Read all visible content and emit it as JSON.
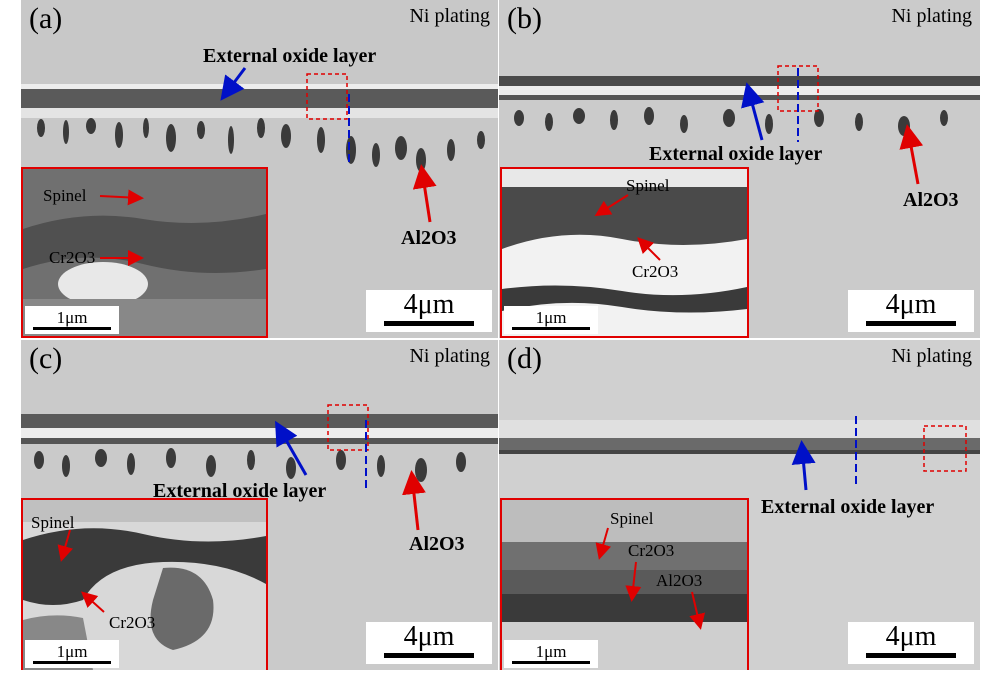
{
  "panels": [
    {
      "label": "(a)",
      "plating": "Ni plating",
      "scale": "4μm",
      "inset_scale": "1μm",
      "annotations": {
        "external_oxide": "External oxide layer",
        "al2o3": "Al2O3"
      },
      "inset_labels": {
        "spinel": "Spinel",
        "cr2o3": "Cr2O3"
      }
    },
    {
      "label": "(b)",
      "plating": "Ni plating",
      "scale": "4μm",
      "inset_scale": "1μm",
      "annotations": {
        "external_oxide": "External oxide layer",
        "al2o3": "Al2O3"
      },
      "inset_labels": {
        "spinel": "Spinel",
        "cr2o3": "Cr2O3"
      }
    },
    {
      "label": "(c)",
      "plating": "Ni plating",
      "scale": "4μm",
      "inset_scale": "1μm",
      "annotations": {
        "external_oxide": "External oxide layer",
        "al2o3": "Al2O3"
      },
      "inset_labels": {
        "spinel": "Spinel",
        "cr2o3": "Cr2O3"
      }
    },
    {
      "label": "(d)",
      "plating": "Ni plating",
      "scale": "4μm",
      "inset_scale": "1μm",
      "annotations": {
        "external_oxide": "External oxide layer"
      },
      "inset_labels": {
        "spinel": "Spinel",
        "cr2o3": "Cr2O3",
        "al2o3": "Al2O3"
      }
    }
  ],
  "colors": {
    "arrow_red": "#e00000",
    "arrow_blue": "#0010c8",
    "inset_border": "#e00000"
  }
}
